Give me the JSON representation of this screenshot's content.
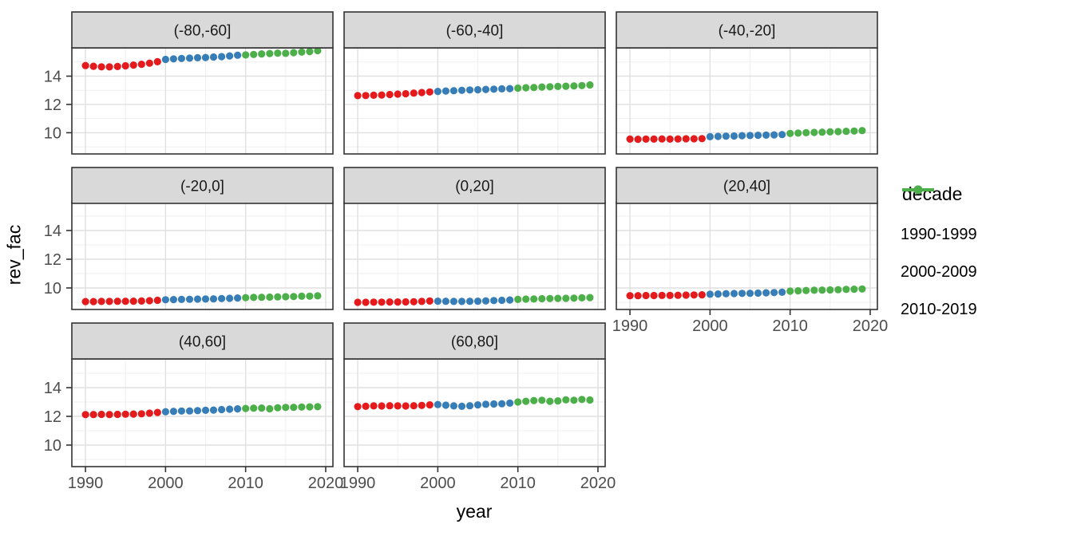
{
  "chart_data": {
    "type": "scatter",
    "title": "",
    "xlabel": "year",
    "ylabel": "rev_fac",
    "legend_title": "decade",
    "legend_position": "right",
    "grid": "major and minor, light grey on white (theme_bw)",
    "x_ticks": [
      1990,
      2000,
      2010,
      2020
    ],
    "y_ticks": [
      10,
      12,
      14
    ],
    "x_minor": [
      1995,
      2005,
      2015
    ],
    "y_minor": [
      9,
      11,
      13,
      15
    ],
    "x_range": [
      1988.3,
      2020.9
    ],
    "y_range": [
      8.5,
      16.0
    ],
    "x": [
      1990,
      1991,
      1992,
      1993,
      1994,
      1995,
      1996,
      1997,
      1998,
      1999,
      2000,
      2001,
      2002,
      2003,
      2004,
      2005,
      2006,
      2007,
      2008,
      2009,
      2010,
      2011,
      2012,
      2013,
      2014,
      2015,
      2016,
      2017,
      2018,
      2019
    ],
    "series": [
      {
        "name": "1990-1999",
        "color": "#E41A1C",
        "year_range": [
          1990,
          1999
        ]
      },
      {
        "name": "2000-2009",
        "color": "#377EB8",
        "year_range": [
          2000,
          2009
        ]
      },
      {
        "name": "2010-2019",
        "color": "#4DAF4A",
        "year_range": [
          2010,
          2019
        ]
      }
    ],
    "facets": [
      {
        "label": "(-80,-60]",
        "values": [
          14.75,
          14.7,
          14.66,
          14.65,
          14.68,
          14.73,
          14.78,
          14.84,
          14.92,
          15.02,
          15.18,
          15.22,
          15.25,
          15.27,
          15.3,
          15.32,
          15.35,
          15.38,
          15.43,
          15.48,
          15.5,
          15.53,
          15.57,
          15.6,
          15.63,
          15.61,
          15.66,
          15.7,
          15.74,
          15.8
        ]
      },
      {
        "label": "(-60,-40]",
        "values": [
          12.62,
          12.63,
          12.65,
          12.67,
          12.7,
          12.73,
          12.76,
          12.8,
          12.84,
          12.88,
          12.92,
          12.95,
          12.97,
          13.0,
          13.02,
          13.04,
          13.06,
          13.08,
          13.1,
          13.12,
          13.15,
          13.18,
          13.2,
          13.23,
          13.25,
          13.27,
          13.29,
          13.31,
          13.33,
          13.38
        ]
      },
      {
        "label": "(-40,-20]",
        "values": [
          9.55,
          9.54,
          9.55,
          9.55,
          9.56,
          9.55,
          9.56,
          9.57,
          9.57,
          9.58,
          9.72,
          9.74,
          9.76,
          9.77,
          9.79,
          9.8,
          9.82,
          9.83,
          9.85,
          9.87,
          9.95,
          9.97,
          10.0,
          10.02,
          10.04,
          10.06,
          10.08,
          10.1,
          10.12,
          10.15
        ]
      },
      {
        "label": "(-20,0]",
        "values": [
          9.05,
          9.05,
          9.06,
          9.06,
          9.07,
          9.07,
          9.08,
          9.09,
          9.11,
          9.14,
          9.18,
          9.19,
          9.2,
          9.21,
          9.22,
          9.23,
          9.24,
          9.26,
          9.28,
          9.3,
          9.32,
          9.34,
          9.35,
          9.36,
          9.38,
          9.39,
          9.4,
          9.42,
          9.43,
          9.45
        ]
      },
      {
        "label": "(0,20]",
        "values": [
          9.0,
          9.0,
          9.01,
          9.01,
          9.02,
          9.02,
          9.03,
          9.04,
          9.06,
          9.09,
          9.08,
          9.07,
          9.06,
          9.06,
          9.07,
          9.08,
          9.1,
          9.12,
          9.14,
          9.16,
          9.2,
          9.22,
          9.23,
          9.25,
          9.26,
          9.27,
          9.28,
          9.29,
          9.31,
          9.33
        ]
      },
      {
        "label": "(20,40]",
        "values": [
          9.46,
          9.46,
          9.47,
          9.47,
          9.48,
          9.48,
          9.49,
          9.5,
          9.51,
          9.52,
          9.56,
          9.58,
          9.6,
          9.61,
          9.62,
          9.63,
          9.64,
          9.66,
          9.68,
          9.7,
          9.78,
          9.8,
          9.82,
          9.84,
          9.85,
          9.86,
          9.88,
          9.9,
          9.91,
          9.93
        ]
      },
      {
        "label": "(40,60]",
        "values": [
          12.12,
          12.13,
          12.14,
          12.13,
          12.14,
          12.15,
          12.16,
          12.18,
          12.22,
          12.27,
          12.32,
          12.35,
          12.37,
          12.38,
          12.4,
          12.42,
          12.44,
          12.47,
          12.5,
          12.52,
          12.55,
          12.57,
          12.58,
          12.53,
          12.6,
          12.62,
          12.63,
          12.65,
          12.66,
          12.67
        ]
      },
      {
        "label": "(60,80]",
        "values": [
          12.68,
          12.7,
          12.73,
          12.72,
          12.74,
          12.73,
          12.72,
          12.74,
          12.76,
          12.8,
          12.82,
          12.78,
          12.73,
          12.7,
          12.74,
          12.8,
          12.84,
          12.86,
          12.88,
          12.92,
          13.0,
          13.05,
          13.1,
          13.12,
          13.05,
          13.08,
          13.15,
          13.12,
          13.18,
          13.14
        ]
      }
    ],
    "style_colors": {
      "strip_background": "#D9D9D9",
      "panel_border": "#333333",
      "grid_major": "#E0E0E0",
      "grid_minor": "#EFEFEF",
      "tick_label": "#4D4D4D",
      "strip_text": "#1A1A1A"
    }
  }
}
